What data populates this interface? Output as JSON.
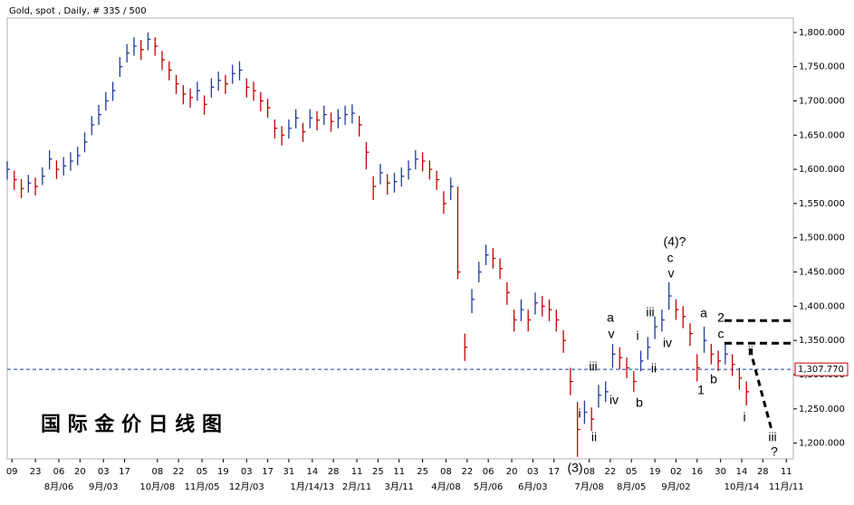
{
  "chart_data": {
    "type": "ohlc",
    "title": "Gold, spot , Daily, # 335 / 500",
    "watermark": "国 际 金 价 日 线 图",
    "up_color": "#1f3a9a",
    "down_color": "#c00000",
    "x": [
      0,
      3,
      6,
      9,
      12,
      15,
      18,
      21,
      24,
      27,
      30,
      33,
      36,
      39,
      42,
      45,
      48,
      51,
      54,
      57,
      60,
      63,
      66,
      69,
      72,
      75,
      78,
      81,
      84,
      87,
      90,
      93,
      96,
      99,
      102,
      105,
      108,
      111,
      114,
      117,
      120,
      123,
      126,
      129,
      132,
      135,
      138,
      141,
      144,
      147,
      150,
      153,
      156,
      159,
      162,
      165,
      168,
      171,
      174,
      177,
      180,
      183,
      186,
      189,
      192,
      195,
      198,
      201,
      204,
      207,
      210,
      213,
      216,
      219,
      222,
      225,
      228,
      231,
      234,
      237,
      240,
      243,
      246,
      249,
      252,
      255,
      258,
      261,
      264,
      267,
      270,
      273,
      276,
      279,
      282,
      285,
      288,
      291,
      294,
      297,
      300,
      303,
      306,
      309,
      312,
      315
    ],
    "high": [
      1612,
      1598,
      1586,
      1592,
      1588,
      1603,
      1628,
      1613,
      1618,
      1625,
      1633,
      1654,
      1678,
      1694,
      1713,
      1728,
      1764,
      1783,
      1793,
      1789,
      1800,
      1793,
      1773,
      1758,
      1738,
      1723,
      1718,
      1728,
      1708,
      1733,
      1743,
      1738,
      1753,
      1758,
      1733,
      1728,
      1713,
      1703,
      1673,
      1663,
      1673,
      1688,
      1668,
      1688,
      1685,
      1693,
      1683,
      1688,
      1693,
      1695,
      1678,
      1640,
      1590,
      1608,
      1593,
      1595,
      1603,
      1613,
      1628,
      1625,
      1613,
      1598,
      1568,
      1588,
      1575,
      1360,
      1425,
      1465,
      1490,
      1485,
      1470,
      1435,
      1395,
      1410,
      1395,
      1420,
      1415,
      1410,
      1395,
      1365,
      1310,
      1260,
      1262,
      1252,
      1285,
      1290,
      1345,
      1340,
      1325,
      1305,
      1335,
      1355,
      1385,
      1395,
      1435,
      1410,
      1400,
      1375,
      1330,
      1370,
      1345,
      1335,
      1345,
      1330,
      1310,
      1290
    ],
    "low": [
      1585,
      1570,
      1558,
      1566,
      1562,
      1577,
      1600,
      1586,
      1591,
      1598,
      1606,
      1625,
      1650,
      1665,
      1686,
      1700,
      1735,
      1756,
      1766,
      1760,
      1774,
      1766,
      1745,
      1730,
      1710,
      1695,
      1690,
      1700,
      1680,
      1705,
      1715,
      1710,
      1725,
      1730,
      1705,
      1700,
      1685,
      1675,
      1645,
      1635,
      1645,
      1660,
      1640,
      1660,
      1657,
      1665,
      1655,
      1660,
      1665,
      1667,
      1648,
      1600,
      1555,
      1578,
      1563,
      1566,
      1575,
      1585,
      1600,
      1597,
      1585,
      1570,
      1535,
      1555,
      1440,
      1320,
      1390,
      1435,
      1460,
      1455,
      1440,
      1402,
      1363,
      1378,
      1363,
      1388,
      1385,
      1378,
      1363,
      1332,
      1270,
      1180,
      1228,
      1218,
      1252,
      1260,
      1310,
      1308,
      1295,
      1275,
      1305,
      1322,
      1352,
      1363,
      1395,
      1380,
      1368,
      1342,
      1290,
      1332,
      1315,
      1305,
      1315,
      1298,
      1278,
      1255
    ],
    "close": [
      1600,
      1585,
      1572,
      1580,
      1575,
      1590,
      1615,
      1600,
      1605,
      1612,
      1620,
      1640,
      1665,
      1680,
      1700,
      1715,
      1750,
      1770,
      1780,
      1775,
      1790,
      1780,
      1760,
      1745,
      1725,
      1710,
      1705,
      1715,
      1695,
      1720,
      1730,
      1725,
      1740,
      1745,
      1720,
      1715,
      1700,
      1690,
      1660,
      1650,
      1660,
      1675,
      1655,
      1675,
      1672,
      1680,
      1670,
      1675,
      1680,
      1682,
      1665,
      1625,
      1575,
      1595,
      1580,
      1582,
      1590,
      1600,
      1615,
      1612,
      1600,
      1585,
      1550,
      1575,
      1450,
      1340,
      1410,
      1450,
      1475,
      1470,
      1455,
      1420,
      1380,
      1395,
      1380,
      1405,
      1400,
      1395,
      1380,
      1350,
      1290,
      1220,
      1245,
      1235,
      1270,
      1275,
      1330,
      1325,
      1310,
      1290,
      1320,
      1340,
      1370,
      1380,
      1415,
      1395,
      1385,
      1360,
      1310,
      1350,
      1330,
      1320,
      1330,
      1315,
      1295,
      1275
    ],
    "xlim": [
      0,
      335
    ],
    "ylim": [
      1177,
      1821
    ],
    "yticks": [
      {
        "value": 1200,
        "label": "1,200.000"
      },
      {
        "value": 1250,
        "label": "1,250.000"
      },
      {
        "value": 1300,
        "label": "1,300.000"
      },
      {
        "value": 1350,
        "label": "1,350.000"
      },
      {
        "value": 1400,
        "label": "1,400.000"
      },
      {
        "value": 1450,
        "label": "1,450.000"
      },
      {
        "value": 1500,
        "label": "1,500.000"
      },
      {
        "value": 1550,
        "label": "1,550.000"
      },
      {
        "value": 1600,
        "label": "1,600.000"
      },
      {
        "value": 1650,
        "label": "1,650.000"
      },
      {
        "value": 1700,
        "label": "1,700.000"
      },
      {
        "value": 1750,
        "label": "1,750.000"
      },
      {
        "value": 1800,
        "label": "1,800.000"
      }
    ],
    "xticks": [
      {
        "value": 2,
        "label": "09"
      },
      {
        "value": 12,
        "label": "23"
      },
      {
        "value": 22,
        "label": "06"
      },
      {
        "value": 31,
        "label": "20"
      },
      {
        "value": 41,
        "label": "03"
      },
      {
        "value": 50,
        "label": "17"
      },
      {
        "value": 64,
        "label": "08"
      },
      {
        "value": 73,
        "label": "22"
      },
      {
        "value": 83,
        "label": "05"
      },
      {
        "value": 92,
        "label": "19"
      },
      {
        "value": 102,
        "label": "03"
      },
      {
        "value": 111,
        "label": "17"
      },
      {
        "value": 120,
        "label": "31"
      },
      {
        "value": 130,
        "label": "14"
      },
      {
        "value": 139,
        "label": "28"
      },
      {
        "value": 149,
        "label": "11"
      },
      {
        "value": 158,
        "label": "25"
      },
      {
        "value": 167,
        "label": "11"
      },
      {
        "value": 177,
        "label": "25"
      },
      {
        "value": 187,
        "label": "08"
      },
      {
        "value": 196,
        "label": "22"
      },
      {
        "value": 205,
        "label": "06"
      },
      {
        "value": 215,
        "label": "20"
      },
      {
        "value": 224,
        "label": "03"
      },
      {
        "value": 233,
        "label": "17"
      },
      {
        "value": 248,
        "label": "08"
      },
      {
        "value": 257,
        "label": "22"
      },
      {
        "value": 266,
        "label": "05"
      },
      {
        "value": 276,
        "label": "19"
      },
      {
        "value": 285,
        "label": "02"
      },
      {
        "value": 294,
        "label": "16"
      },
      {
        "value": 304,
        "label": "30"
      },
      {
        "value": 313,
        "label": "14"
      },
      {
        "value": 322,
        "label": "28"
      },
      {
        "value": 332,
        "label": "11"
      }
    ],
    "month_ticks": [
      {
        "value": 22,
        "label": "8月/06"
      },
      {
        "value": 41,
        "label": "9月/03"
      },
      {
        "value": 64,
        "label": "10月/08"
      },
      {
        "value": 83,
        "label": "11月/05"
      },
      {
        "value": 102,
        "label": "12月/03"
      },
      {
        "value": 130,
        "label": "1月/14/13"
      },
      {
        "value": 149,
        "label": "2月/11"
      },
      {
        "value": 167,
        "label": "3月/11"
      },
      {
        "value": 187,
        "label": "4月/08"
      },
      {
        "value": 205,
        "label": "5月/06"
      },
      {
        "value": 224,
        "label": "6月/03"
      },
      {
        "value": 248,
        "label": "7月/08"
      },
      {
        "value": 266,
        "label": "8月/05"
      },
      {
        "value": 285,
        "label": "9月/02"
      },
      {
        "value": 313,
        "label": "10月/14"
      },
      {
        "value": 332,
        "label": "11月/11"
      }
    ],
    "last_price": {
      "value": 1307.77,
      "label": "1,307.770"
    },
    "levels": [
      1379,
      1346
    ],
    "annotations": [
      "(4)?",
      "c",
      "v",
      "a",
      "v",
      "iii",
      "i",
      "iv",
      "ii",
      "(3)",
      "i",
      "iii",
      "iv",
      "ii",
      "b",
      "a",
      "2",
      "c",
      "b",
      "1",
      "ii",
      "i",
      "iii",
      "?"
    ]
  }
}
